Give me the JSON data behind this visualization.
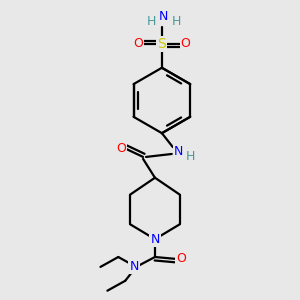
{
  "background_color": "#e8e8e8",
  "atom_colors": {
    "C": "#000000",
    "H": "#4a9a9a",
    "N": "#0000ff",
    "O": "#ff0000",
    "S": "#cccc00"
  },
  "figsize": [
    3.0,
    3.0
  ],
  "dpi": 100
}
